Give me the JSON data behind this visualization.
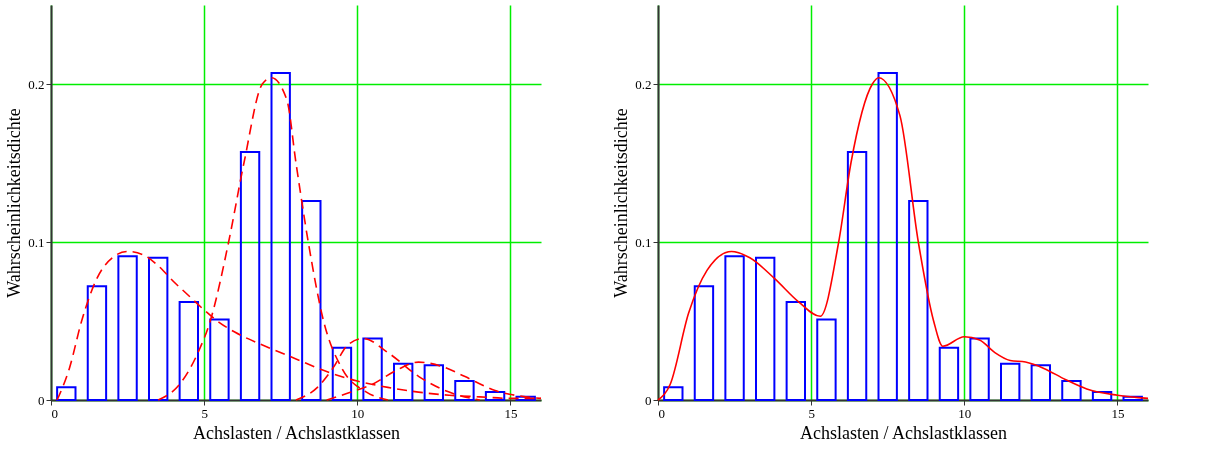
{
  "chart_data": [
    {
      "type": "bar",
      "xlabel": "Achslasten / Achslastklassen",
      "ylabel": "Wahrscheinlichkeitsdichte",
      "xlim": [
        0,
        16
      ],
      "xticks": [
        0,
        5,
        10,
        15
      ],
      "ylim": [
        0,
        0.25
      ],
      "yticks": [
        0,
        0.1,
        0.2
      ],
      "grid": true,
      "series": [
        {
          "color": "#0000ff",
          "x": [
            0.5,
            1.5,
            2.5,
            3.5,
            4.5,
            5.5,
            6.5,
            7.5,
            8.5,
            9.5,
            10.5,
            11.5,
            12.5,
            13.5,
            14.5,
            15.5
          ],
          "values": [
            0.008,
            0.072,
            0.091,
            0.09,
            0.062,
            0.051,
            0.157,
            0.207,
            0.126,
            0.033,
            0.039,
            0.023,
            0.022,
            0.012,
            0.005,
            0.002
          ]
        },
        {
          "type": "line",
          "color": "#ff0000",
          "line_style": "dashed",
          "x": [
            0.2,
            0.6,
            1.0,
            1.5,
            2.0,
            2.5,
            3.0,
            3.5,
            4.0,
            4.5,
            5.0,
            5.5,
            6.0,
            7.0,
            8.0,
            9.0,
            10.0,
            11.0,
            12.0,
            13.0,
            14.0,
            15.0,
            16.0
          ],
          "values": [
            0,
            0.02,
            0.05,
            0.077,
            0.09,
            0.094,
            0.092,
            0.085,
            0.075,
            0.066,
            0.057,
            0.049,
            0.043,
            0.034,
            0.026,
            0.018,
            0.012,
            0.008,
            0.005,
            0.003,
            0.002,
            0.001,
            0.001
          ]
        },
        {
          "type": "line",
          "color": "#ff0000",
          "line_style": "dashed",
          "x": [
            3.5,
            4.2,
            4.8,
            5.2,
            5.8,
            6.3,
            6.9,
            7.2,
            7.7,
            8.0,
            8.4,
            8.9,
            9.5,
            10.3,
            11.0
          ],
          "values": [
            0,
            0.01,
            0.03,
            0.05,
            0.1,
            0.15,
            0.2,
            0.204,
            0.19,
            0.15,
            0.1,
            0.05,
            0.02,
            0.005,
            0
          ]
        },
        {
          "type": "line",
          "color": "#ff0000",
          "line_style": "dashed",
          "x": [
            8.0,
            8.7,
            9.2,
            9.7,
            10.2,
            11.0,
            12.0,
            13.0,
            14.0
          ],
          "values": [
            0,
            0.008,
            0.02,
            0.035,
            0.039,
            0.03,
            0.015,
            0.005,
            0
          ]
        },
        {
          "type": "line",
          "color": "#ff0000",
          "line_style": "dashed",
          "x": [
            9.0,
            9.8,
            10.5,
            11.3,
            12.0,
            12.8,
            13.5,
            14.5,
            15.5,
            16.0
          ],
          "values": [
            0,
            0.005,
            0.01,
            0.019,
            0.024,
            0.021,
            0.015,
            0.006,
            0.002,
            0.001
          ]
        }
      ]
    },
    {
      "type": "bar",
      "xlabel": "Achslasten / Achslastklassen",
      "ylabel": "Wahrscheinlichkeitsdichte",
      "xlim": [
        0,
        16
      ],
      "xticks": [
        0,
        5,
        10,
        15
      ],
      "ylim": [
        0,
        0.25
      ],
      "yticks": [
        0,
        0.1,
        0.2
      ],
      "grid": true,
      "series": [
        {
          "color": "#0000ff",
          "x": [
            0.5,
            1.5,
            2.5,
            3.5,
            4.5,
            5.5,
            6.5,
            7.5,
            8.5,
            9.5,
            10.5,
            11.5,
            12.5,
            13.5,
            14.5,
            15.5
          ],
          "values": [
            0.008,
            0.072,
            0.091,
            0.09,
            0.062,
            0.051,
            0.157,
            0.207,
            0.126,
            0.033,
            0.039,
            0.023,
            0.022,
            0.012,
            0.005,
            0.002
          ]
        },
        {
          "type": "line",
          "color": "#ff0000",
          "line_style": "solid",
          "x": [
            0,
            0.4,
            1.0,
            1.6,
            2.4,
            3.0,
            3.8,
            4.6,
            5.3,
            5.9,
            6.3,
            7.0,
            7.2,
            7.9,
            8.5,
            9.0,
            9.3,
            10.0,
            10.5,
            11.0,
            11.5,
            12.0,
            12.6,
            13.3,
            14.0,
            15.0,
            16.0
          ],
          "values": [
            0,
            0.01,
            0.055,
            0.082,
            0.094,
            0.09,
            0.077,
            0.062,
            0.053,
            0.1,
            0.15,
            0.2,
            0.204,
            0.18,
            0.1,
            0.05,
            0.034,
            0.04,
            0.038,
            0.03,
            0.025,
            0.024,
            0.02,
            0.013,
            0.007,
            0.003,
            0.001
          ]
        }
      ]
    }
  ]
}
